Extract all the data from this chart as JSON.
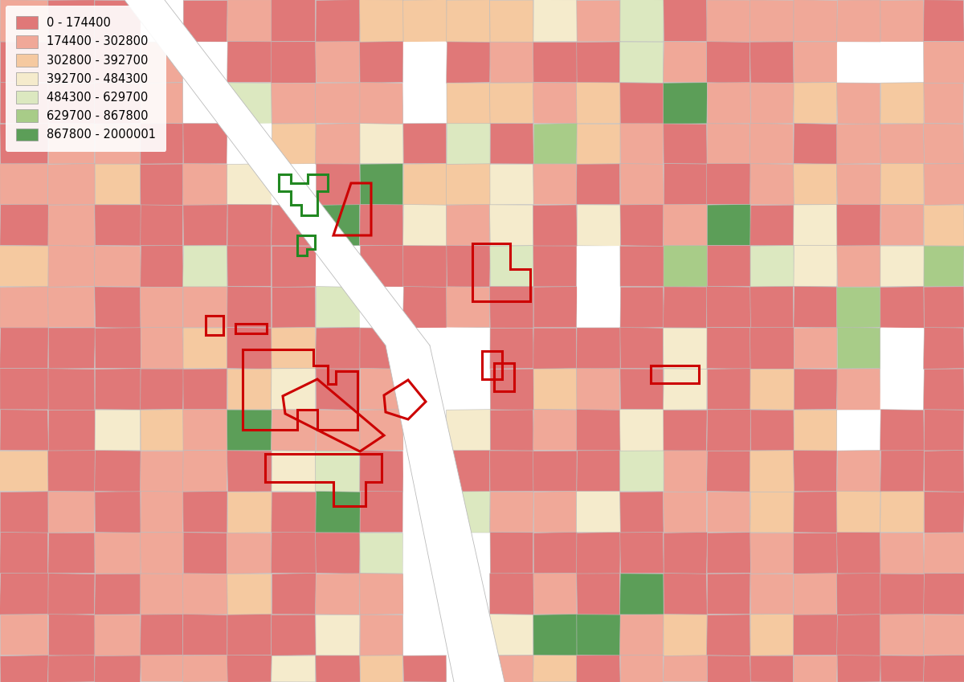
{
  "legend_labels": [
    "0 - 174400",
    "174400 - 302800",
    "302800 - 392700",
    "392700 - 484300",
    "484300 - 629700",
    "629700 - 867800",
    "867800 - 2000001"
  ],
  "legend_colors": [
    "#E07878",
    "#F0A898",
    "#F5C9A0",
    "#F5EBCC",
    "#DCE8C0",
    "#A8CC88",
    "#5C9E58"
  ],
  "background_color": "#FFFFFF",
  "border_color_normal": "#BBBBBB",
  "border_color_red": "#CC0000",
  "border_color_green": "#228822",
  "figsize": [
    12.0,
    8.49
  ],
  "fig_dpi": 100,
  "color_weights": [
    0.44,
    0.22,
    0.12,
    0.1,
    0.05,
    0.04,
    0.03
  ]
}
